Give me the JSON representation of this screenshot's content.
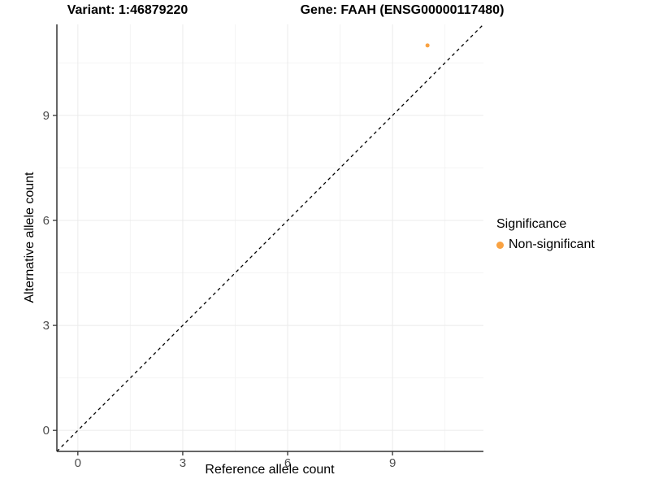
{
  "chart_data": {
    "type": "scatter",
    "title_left": "Variant: 1:46879220",
    "title_right": "Gene: FAAH (ENSG00000117480)",
    "xlabel": "Reference allele count",
    "ylabel": "Alternative allele count",
    "xlim": [
      -0.6,
      11.6
    ],
    "ylim": [
      -0.6,
      11.6
    ],
    "x_ticks": [
      0,
      3,
      6,
      9
    ],
    "y_ticks": [
      0,
      3,
      6,
      9
    ],
    "x_minor_ticks": [
      1.5,
      4.5,
      7.5,
      10.5
    ],
    "y_minor_ticks": [
      1.5,
      4.5,
      7.5,
      10.5
    ],
    "grid": "major+minor",
    "legend_position": "right",
    "reference_line": {
      "type": "identity y=x",
      "style": "dashed",
      "color": "#000000"
    },
    "series": [
      {
        "name": "Non-significant",
        "color": "#F9A242",
        "points": [
          {
            "x": 10,
            "y": 11
          }
        ]
      }
    ],
    "legend": {
      "title": "Significance",
      "items": [
        {
          "label": "Non-significant",
          "color": "#F9A242"
        }
      ]
    },
    "colors": {
      "grid_major": "#EBEBEB",
      "grid_minor": "#F4F4F4",
      "axis_line": "#333333",
      "tick_mark": "#333333",
      "tick_label": "#4D4D4D",
      "text": "#000000",
      "background": "#FFFFFF"
    }
  }
}
